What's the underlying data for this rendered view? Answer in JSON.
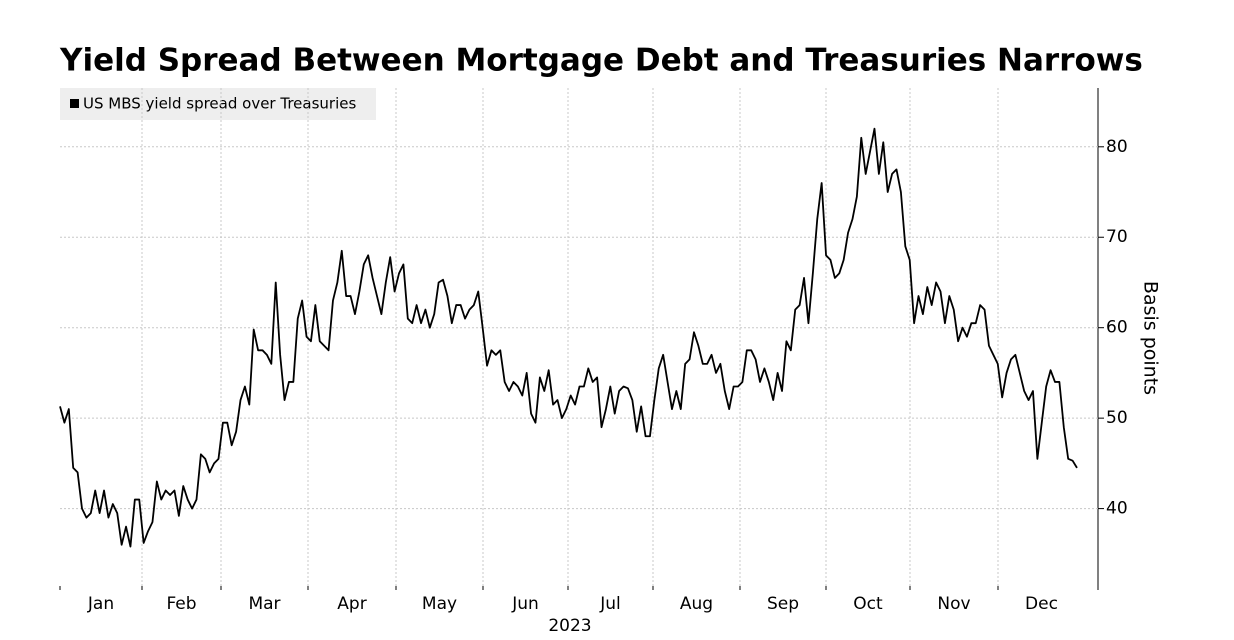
{
  "chart_data": {
    "type": "line",
    "title": "Yield Spread Between Mortgage Debt and Treasuries Narrows",
    "y_label": "Basis points",
    "x_label": "2023",
    "xtick_labels": [
      "Jan",
      "Feb",
      "Mar",
      "Apr",
      "May",
      "Jun",
      "Jul",
      "Aug",
      "Sep",
      "Oct",
      "Nov",
      "Dec"
    ],
    "ylim": [
      31,
      86.5
    ],
    "yticks": [
      40,
      50,
      60,
      70,
      80
    ],
    "grid": true,
    "series": [
      {
        "name": "US MBS yield spread over Treasuries",
        "color": "#000000",
        "values": [
          51.3,
          49.5,
          51,
          44.5,
          44,
          40,
          39,
          39.5,
          42,
          39.5,
          42,
          39,
          40.5,
          39.5,
          36,
          38,
          35.8,
          41,
          41,
          36.2,
          37.5,
          38.5,
          43,
          41,
          42,
          41.5,
          42,
          39.2,
          42.5,
          41,
          40,
          41,
          46,
          45.5,
          44,
          45,
          45.5,
          49.5,
          49.5,
          47,
          48.5,
          52,
          53.5,
          51.5,
          59.8,
          57.5,
          57.5,
          57,
          56,
          65,
          57,
          52,
          54,
          54,
          61,
          63,
          59,
          58.5,
          62.5,
          58.5,
          58,
          57.5,
          63,
          65,
          68.5,
          63.5,
          63.5,
          61.5,
          64,
          67,
          68,
          65.5,
          63.5,
          61.5,
          65,
          67.8,
          64,
          66,
          67,
          61,
          60.5,
          62.5,
          60.5,
          62,
          60,
          61.5,
          65,
          65.3,
          63.5,
          60.5,
          62.5,
          62.5,
          61,
          62,
          62.5,
          64,
          60,
          55.8,
          57.5,
          57,
          57.5,
          54,
          53,
          54,
          53.5,
          52.5,
          55,
          50.5,
          49.5,
          54.5,
          53,
          55.3,
          51.5,
          52,
          50,
          51,
          52.5,
          51.5,
          53.5,
          53.5,
          55.5,
          54,
          54.5,
          49,
          51,
          53.5,
          50.5,
          53,
          53.5,
          53.3,
          52,
          48.5,
          51.3,
          48,
          48,
          52,
          55.5,
          57,
          54,
          51,
          53,
          51,
          56,
          56.5,
          59.5,
          58,
          56,
          56,
          57,
          55,
          56,
          53,
          51,
          53.5,
          53.5,
          54,
          57.5,
          57.5,
          56.5,
          54,
          55.5,
          54,
          52,
          55,
          53,
          58.5,
          57.5,
          62,
          62.5,
          65.5,
          60.5,
          66,
          72,
          76,
          68,
          67.5,
          65.5,
          66,
          67.5,
          70.5,
          72,
          74.5,
          81,
          77,
          79.5,
          82,
          77,
          80.5,
          75,
          77,
          77.5,
          75,
          69,
          67.5,
          60.5,
          63.5,
          61.5,
          64.5,
          62.5,
          65,
          64,
          60.5,
          63.5,
          62,
          58.5,
          60,
          59,
          60.5,
          60.5,
          62.5,
          62,
          58,
          57,
          56,
          52.3,
          55,
          56.5,
          57,
          55,
          53,
          52,
          53,
          45.5,
          49.5,
          53.5,
          55.3,
          54,
          54,
          49,
          45.5,
          45.3,
          44.5
        ]
      }
    ]
  }
}
